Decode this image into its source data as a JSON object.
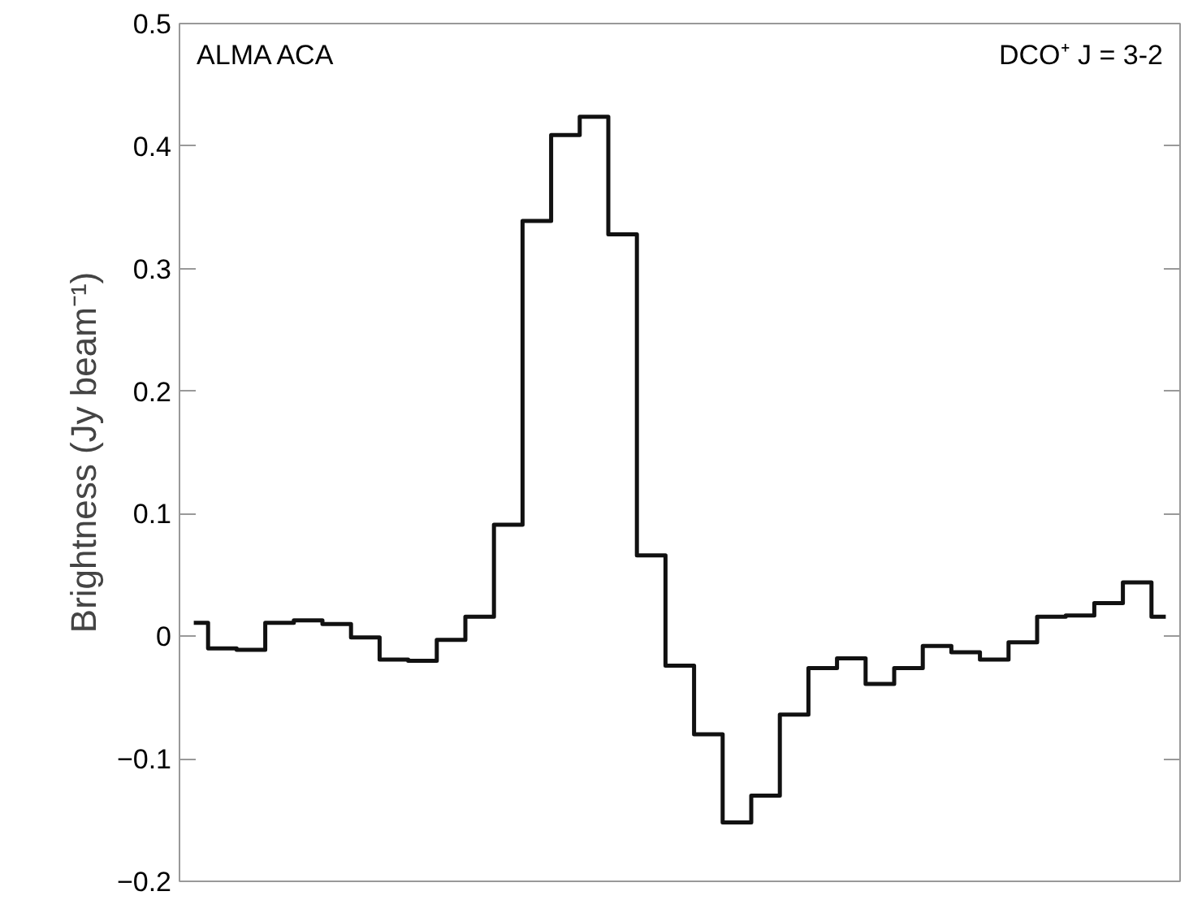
{
  "chart_data": {
    "type": "step",
    "ylabel": "Brightness (Jy beam⁻¹)",
    "annotations": [
      "ALMA ACA",
      "DCO⁺ J = 3-2"
    ],
    "categories": [
      null,
      null,
      null,
      null,
      null,
      null,
      null,
      null,
      null,
      null,
      null,
      null,
      null,
      null,
      null,
      null,
      null,
      null,
      null,
      null,
      null,
      null,
      null,
      null,
      null,
      null,
      null,
      null,
      null,
      null,
      null,
      null,
      null,
      null,
      null
    ],
    "series": [
      {
        "color": "#111111",
        "values": [
          0.011,
          -0.01,
          -0.011,
          0.011,
          0.013,
          0.01,
          -0.001,
          -0.019,
          -0.02,
          -0.003,
          0.016,
          0.091,
          0.339,
          0.409,
          0.424,
          0.328,
          0.066,
          -0.024,
          -0.08,
          -0.152,
          -0.13,
          -0.064,
          -0.026,
          -0.018,
          -0.039,
          -0.026,
          -0.008,
          -0.013,
          -0.019,
          -0.005,
          0.016,
          0.017,
          0.027,
          0.044,
          0.016
        ]
      }
    ],
    "ylim": [
      -0.2,
      0.5
    ],
    "yticks": [
      -0.2,
      -0.1,
      0,
      0.1,
      0.2,
      0.3,
      0.4,
      0.5
    ],
    "grid": false,
    "line_style": "solid"
  }
}
